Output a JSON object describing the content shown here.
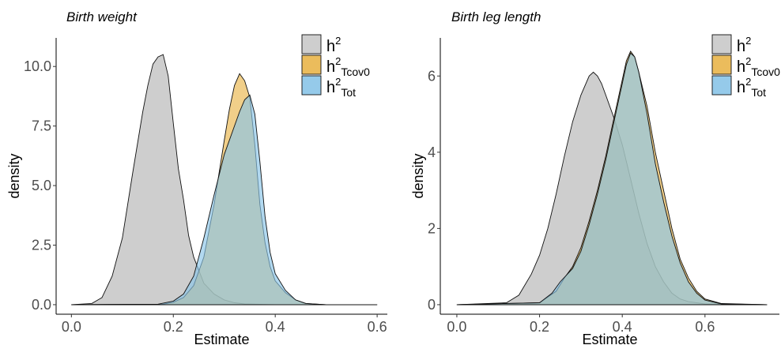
{
  "chart_data": [
    {
      "type": "area",
      "title": "Birth weight",
      "xlabel": "Estimate",
      "ylabel": "density",
      "xlim": [
        -0.03,
        0.62
      ],
      "ylim": [
        -0.4,
        11.2
      ],
      "xticks": [
        0.0,
        0.2,
        0.4,
        0.6
      ],
      "xtick_labels": [
        "0.0",
        "0.2",
        "0.4",
        "0.6"
      ],
      "yticks": [
        0.0,
        2.5,
        5.0,
        7.5,
        10.0
      ],
      "ytick_labels": [
        "0.0",
        "2.5",
        "5.0",
        "7.5",
        "10.0"
      ],
      "legend_position": "top-right",
      "series": [
        {
          "legend_base": "h",
          "legend_sup": "2",
          "legend_sub": "",
          "color": "#bdbdbd",
          "x": [
            0.0,
            0.04,
            0.06,
            0.08,
            0.1,
            0.12,
            0.14,
            0.15,
            0.16,
            0.17,
            0.18,
            0.19,
            0.2,
            0.21,
            0.22,
            0.23,
            0.24,
            0.26,
            0.28,
            0.3,
            0.32,
            0.34,
            0.4,
            0.6
          ],
          "y": [
            0.0,
            0.05,
            0.3,
            1.2,
            2.8,
            5.5,
            8.1,
            9.2,
            10.1,
            10.4,
            10.5,
            9.6,
            7.6,
            5.7,
            4.4,
            2.9,
            2.0,
            0.9,
            0.45,
            0.2,
            0.08,
            0.03,
            0.0,
            0.0
          ]
        },
        {
          "legend_base": "h",
          "legend_sup": "2",
          "legend_sub": "Tcov0",
          "color": "#e9b54a",
          "x": [
            0.0,
            0.18,
            0.2,
            0.22,
            0.24,
            0.26,
            0.28,
            0.3,
            0.31,
            0.32,
            0.33,
            0.34,
            0.35,
            0.36,
            0.37,
            0.38,
            0.39,
            0.4,
            0.42,
            0.44,
            0.46,
            0.5,
            0.6
          ],
          "y": [
            0.0,
            0.02,
            0.1,
            0.3,
            0.8,
            2.0,
            4.2,
            6.9,
            8.2,
            9.2,
            9.7,
            9.4,
            8.7,
            6.7,
            4.2,
            2.6,
            1.6,
            1.0,
            0.5,
            0.2,
            0.05,
            0.0,
            0.0
          ]
        },
        {
          "legend_base": "h",
          "legend_sup": "2",
          "legend_sub": "Tot",
          "color": "#89c4e8",
          "x": [
            0.0,
            0.17,
            0.2,
            0.22,
            0.24,
            0.26,
            0.28,
            0.3,
            0.32,
            0.33,
            0.34,
            0.35,
            0.36,
            0.37,
            0.38,
            0.39,
            0.4,
            0.42,
            0.44,
            0.46,
            0.5,
            0.6
          ],
          "y": [
            0.0,
            0.02,
            0.15,
            0.45,
            1.2,
            2.8,
            4.6,
            6.3,
            7.5,
            8.1,
            8.6,
            8.8,
            8.0,
            6.0,
            3.7,
            2.2,
            1.3,
            0.6,
            0.2,
            0.05,
            0.0,
            0.0
          ]
        }
      ]
    },
    {
      "type": "area",
      "title": "Birth leg length",
      "xlabel": "Estimate",
      "ylabel": "density",
      "xlim": [
        -0.04,
        0.78
      ],
      "ylim": [
        -0.25,
        7.0
      ],
      "xticks": [
        0.0,
        0.2,
        0.4,
        0.6
      ],
      "xtick_labels": [
        "0.0",
        "0.2",
        "0.4",
        "0.6"
      ],
      "yticks": [
        0,
        2,
        4,
        6
      ],
      "ytick_labels": [
        "0",
        "2",
        "4",
        "6"
      ],
      "legend_position": "top-right",
      "series": [
        {
          "legend_base": "h",
          "legend_sup": "2",
          "legend_sub": "",
          "color": "#bdbdbd",
          "x": [
            0.0,
            0.12,
            0.15,
            0.18,
            0.2,
            0.22,
            0.24,
            0.26,
            0.28,
            0.3,
            0.32,
            0.33,
            0.34,
            0.35,
            0.36,
            0.38,
            0.4,
            0.42,
            0.44,
            0.46,
            0.48,
            0.5,
            0.52,
            0.54,
            0.56,
            0.6,
            0.75
          ],
          "y": [
            0.0,
            0.05,
            0.25,
            0.8,
            1.3,
            2.0,
            2.9,
            3.9,
            4.8,
            5.5,
            6.0,
            6.1,
            6.0,
            5.8,
            5.5,
            4.9,
            4.2,
            3.3,
            2.4,
            1.6,
            1.0,
            0.6,
            0.3,
            0.15,
            0.08,
            0.02,
            0.0
          ]
        },
        {
          "legend_base": "h",
          "legend_sup": "2",
          "legend_sub": "Tcov0",
          "color": "#e9b54a",
          "x": [
            0.0,
            0.2,
            0.24,
            0.26,
            0.28,
            0.3,
            0.32,
            0.34,
            0.36,
            0.38,
            0.4,
            0.41,
            0.42,
            0.43,
            0.44,
            0.46,
            0.48,
            0.5,
            0.52,
            0.54,
            0.56,
            0.58,
            0.6,
            0.64,
            0.75
          ],
          "y": [
            0.0,
            0.05,
            0.35,
            0.7,
            1.0,
            1.5,
            2.2,
            3.0,
            3.9,
            4.9,
            5.9,
            6.4,
            6.65,
            6.5,
            6.1,
            5.2,
            4.0,
            3.0,
            2.0,
            1.2,
            0.7,
            0.35,
            0.15,
            0.03,
            0.0
          ]
        },
        {
          "legend_base": "h",
          "legend_sup": "2",
          "legend_sub": "Tot",
          "color": "#89c4e8",
          "x": [
            0.0,
            0.2,
            0.23,
            0.25,
            0.28,
            0.3,
            0.32,
            0.34,
            0.36,
            0.38,
            0.4,
            0.41,
            0.42,
            0.43,
            0.44,
            0.46,
            0.48,
            0.5,
            0.52,
            0.54,
            0.56,
            0.58,
            0.6,
            0.64,
            0.75
          ],
          "y": [
            0.0,
            0.05,
            0.3,
            0.6,
            0.95,
            1.4,
            2.1,
            2.9,
            3.8,
            4.8,
            5.8,
            6.3,
            6.6,
            6.5,
            6.1,
            5.0,
            3.7,
            2.7,
            1.8,
            1.1,
            0.6,
            0.3,
            0.12,
            0.02,
            0.0
          ]
        }
      ]
    }
  ]
}
